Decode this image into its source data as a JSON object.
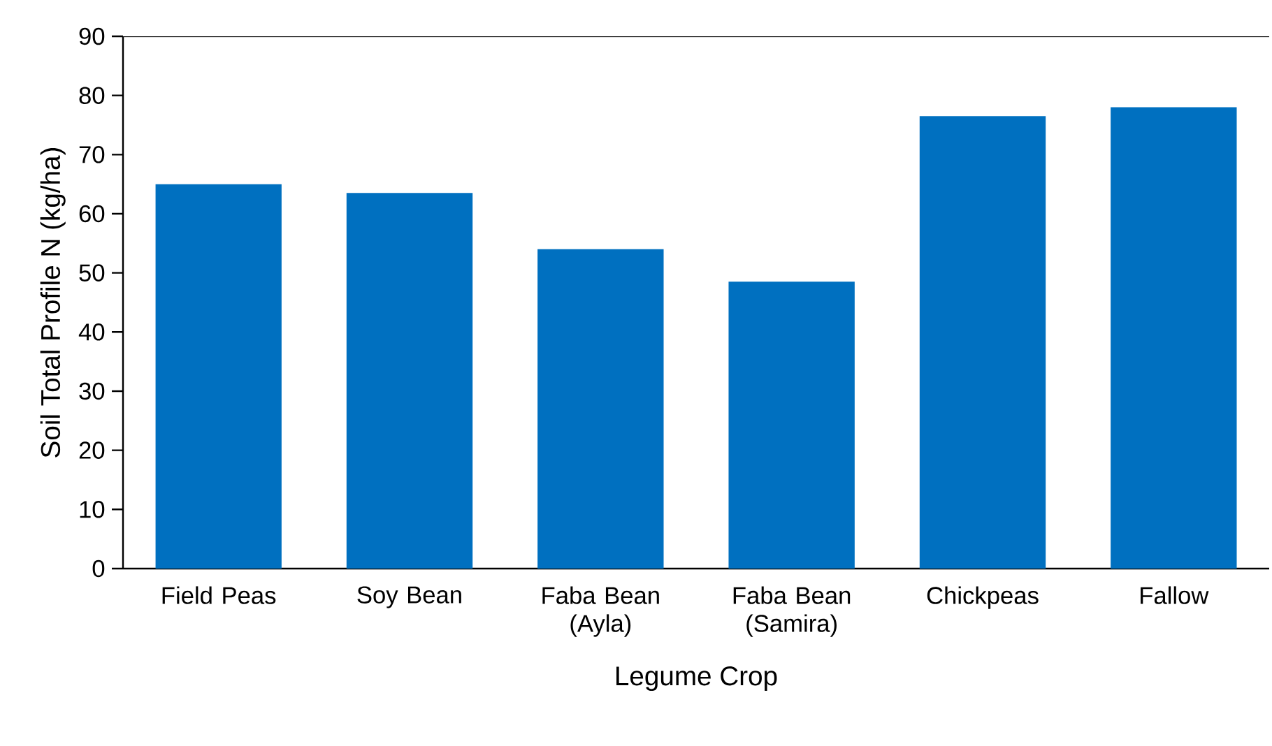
{
  "chart_data": {
    "type": "bar",
    "xlabel": "Legume Crop",
    "ylabel": "Soil Total Profile N (kg/ha)",
    "categories": [
      "Field Peas",
      "Soy Bean",
      "Faba Bean (Ayla)",
      "Faba Bean (Samira)",
      "Chickpeas",
      "Fallow"
    ],
    "values": [
      65,
      63.5,
      54,
      48.5,
      76.5,
      78
    ],
    "color": "#0070c0",
    "ylim": [
      0,
      90
    ],
    "yticks": [
      0,
      10,
      20,
      30,
      40,
      50,
      60,
      70,
      80,
      90
    ]
  }
}
